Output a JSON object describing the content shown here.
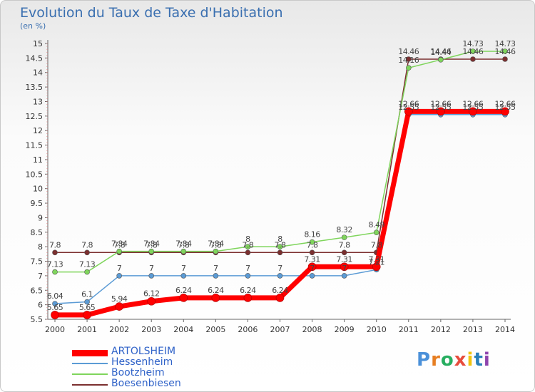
{
  "header": {
    "title": "Evolution du Taux de Taxe d'Habitation",
    "unit": "(en %)"
  },
  "logo": {
    "letters": [
      {
        "char": "P",
        "color": "#4a90d9"
      },
      {
        "char": "r",
        "color": "#e67e22"
      },
      {
        "char": "o",
        "color": "#27ae60"
      },
      {
        "char": "x",
        "color": "#e74c3c"
      },
      {
        "char": "i",
        "color": "#f1c40f"
      },
      {
        "char": "t",
        "color": "#2980b9"
      },
      {
        "char": "i",
        "color": "#8e44ad"
      }
    ]
  },
  "chart_data": {
    "type": "line",
    "title": "Evolution du Taux de Taxe d'Habitation",
    "ylabel": "(en %)",
    "x": [
      "2000",
      "2001",
      "2002",
      "2003",
      "2004",
      "2005",
      "2006",
      "2007",
      "2008",
      "2009",
      "2010",
      "2011",
      "2012",
      "2013",
      "2014"
    ],
    "ylim": [
      5.5,
      15
    ],
    "yticks": [
      "5.5",
      "6",
      "6.5",
      "7",
      "7.5",
      "8",
      "8.5",
      "9",
      "9.5",
      "10",
      "10.5",
      "11",
      "11.5",
      "12",
      "12.5",
      "13",
      "13.5",
      "14",
      "14.5",
      "15"
    ],
    "grid": false,
    "legend_position": "bottom-left",
    "series": [
      {
        "name": "ARTOLSHEIM",
        "color": "#ff0000",
        "values": [
          5.65,
          5.65,
          5.94,
          6.12,
          6.24,
          6.24,
          6.24,
          6.24,
          7.31,
          7.31,
          7.31,
          12.66,
          12.66,
          12.66,
          12.66
        ],
        "labels": [
          "5.65",
          "5.65",
          "5.94",
          "6.12",
          "6.24",
          "6.24",
          "6.24",
          "6.24",
          "7.31",
          "7.31",
          "7.31",
          "12.66",
          "12.66",
          "12.66",
          "12.66"
        ]
      },
      {
        "name": "Hessenheim",
        "color": "#5b9bd5",
        "values": [
          6.04,
          6.1,
          7,
          7,
          7,
          7,
          7,
          7,
          7,
          7,
          7.21,
          12.55,
          12.55,
          12.55,
          12.55
        ],
        "labels": [
          "6.04",
          "6.1",
          "7",
          "7",
          "7",
          "7",
          "7",
          "7",
          "7",
          "7",
          "7.21",
          "12.55",
          "12.55",
          "12.55",
          "12.55"
        ]
      },
      {
        "name": "Bootzheim",
        "color": "#7fd55c",
        "values": [
          7.13,
          7.13,
          7.84,
          7.84,
          7.84,
          7.84,
          8,
          8,
          8.16,
          8.32,
          8.49,
          14.16,
          14.44,
          14.73,
          14.73
        ],
        "labels": [
          "7.13",
          "7.13",
          "7.84",
          "7.84",
          "7.84",
          "7.84",
          "8",
          "8",
          "8.16",
          "8.32",
          "8.49",
          "14.16",
          "14.44",
          "14.73",
          "14.73"
        ]
      },
      {
        "name": "Boesenbiesen",
        "color": "#7b2f2f",
        "values": [
          7.8,
          7.8,
          7.8,
          7.8,
          7.8,
          7.8,
          7.8,
          7.8,
          7.8,
          7.8,
          7.8,
          14.46,
          14.46,
          14.46,
          14.46
        ],
        "labels": [
          "7.8",
          "7.8",
          "7.8",
          "7.8",
          "7.8",
          "7.8",
          "7.8",
          "7.8",
          "7.8",
          "7.8",
          "7.8",
          "14.46",
          "14.46",
          "14.46",
          "14.46"
        ]
      }
    ]
  }
}
